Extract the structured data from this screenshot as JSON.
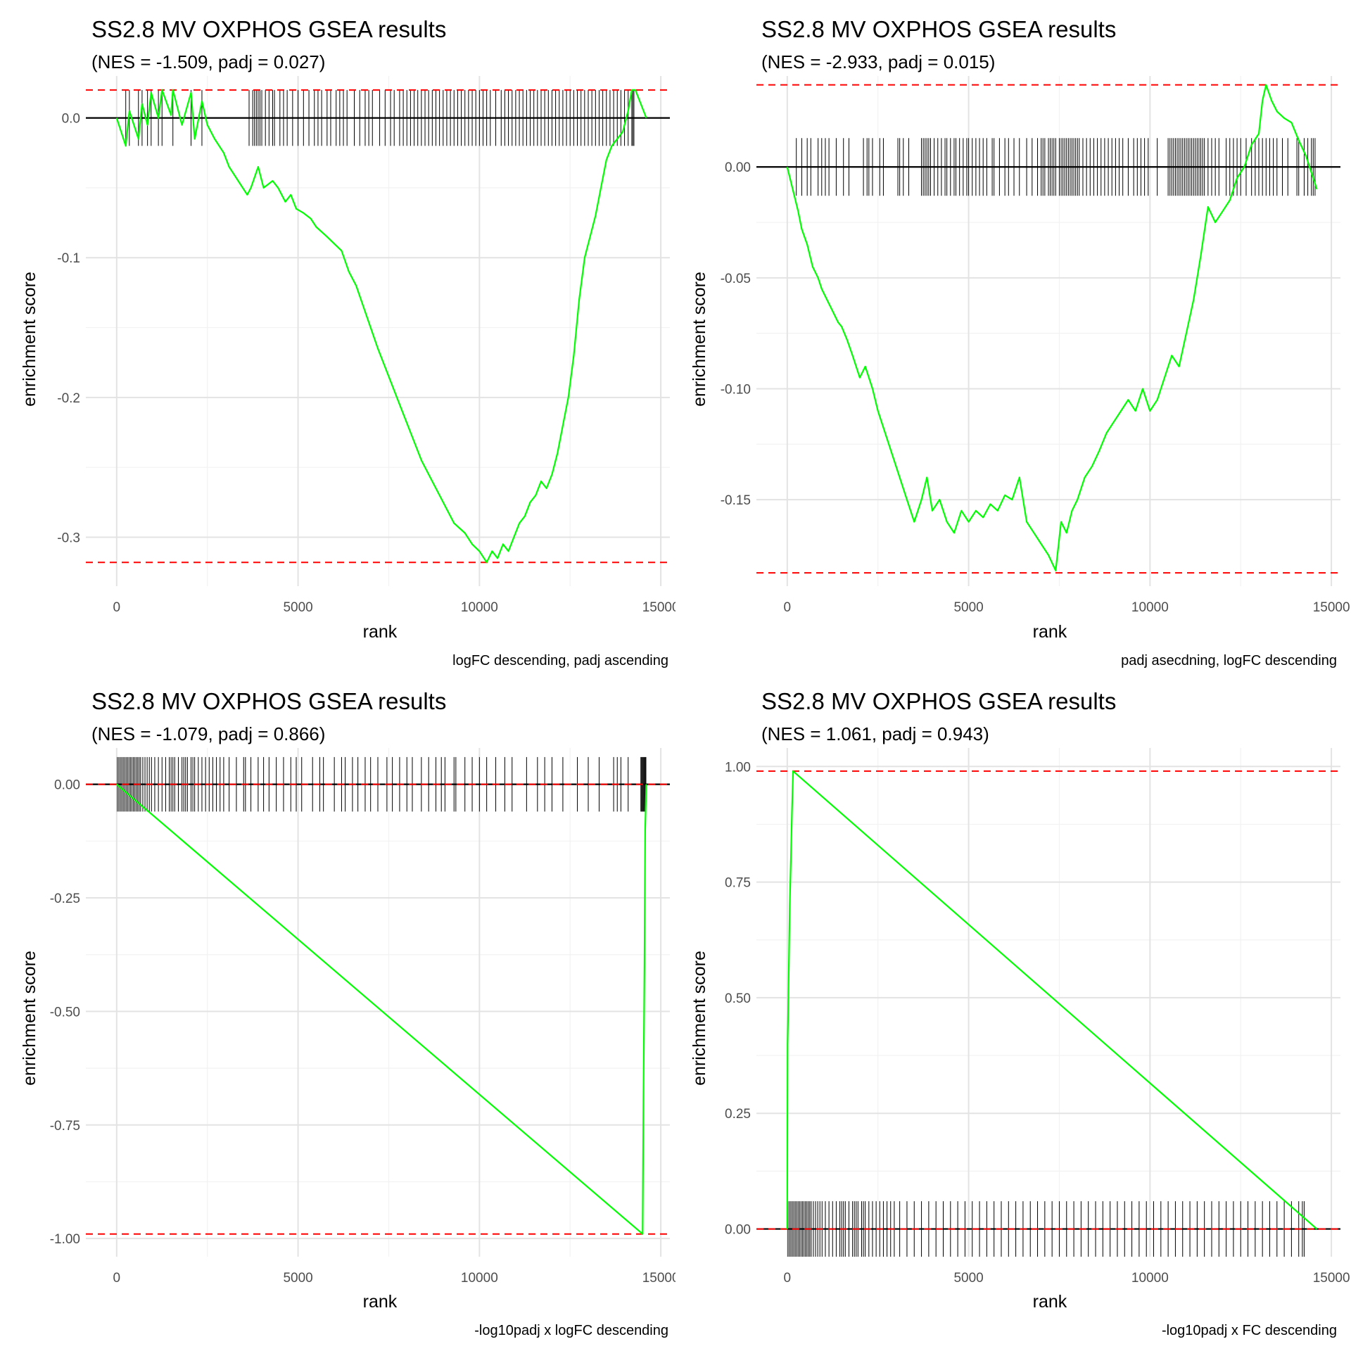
{
  "chart_data": [
    {
      "type": "line",
      "title": "SS2.8 MV OXPHOS GSEA results",
      "subtitle": "(NES = -1.509, padj = 0.027)",
      "caption": "logFC descending, padj ascending",
      "xlabel": "rank",
      "ylabel": "enrichment score",
      "xlim": [
        -850,
        15250
      ],
      "ylim": [
        -0.335,
        0.03
      ],
      "xticks": [
        0,
        5000,
        10000,
        15000
      ],
      "xtick_labels": [
        "0",
        "5000",
        "10000",
        "15000"
      ],
      "yticks": [
        0.0,
        -0.1,
        -0.2,
        -0.3
      ],
      "ytick_labels": [
        "0.0",
        "-0.1",
        "-0.2",
        "-0.3"
      ],
      "dashed_lines": [
        0.02,
        -0.318
      ],
      "tick_band": [
        -0.02,
        0.02
      ],
      "series": [
        {
          "name": "running enrichment score",
          "color": "#00ff00",
          "x": [
            0,
            250,
            350,
            600,
            700,
            850,
            950,
            1150,
            1250,
            1500,
            1550,
            1800,
            2050,
            2150,
            2350,
            2500,
            2700,
            2950,
            3100,
            3350,
            3600,
            3700,
            3900,
            4050,
            4300,
            4450,
            4650,
            4800,
            4950,
            5150,
            5350,
            5500,
            5800,
            6000,
            6200,
            6400,
            6600,
            6800,
            7000,
            7200,
            7500,
            7800,
            8100,
            8400,
            8700,
            9000,
            9300,
            9600,
            9800,
            10000,
            10200,
            10350,
            10500,
            10650,
            10800,
            10950,
            11100,
            11250,
            11400,
            11550,
            11700,
            11850,
            12000,
            12150,
            12300,
            12450,
            12600,
            12750,
            12900,
            13050,
            13200,
            13350,
            13500,
            13650,
            13800,
            13950,
            14100,
            14200,
            14300,
            14600
          ],
          "values": [
            0.0,
            -0.02,
            0.005,
            -0.015,
            0.01,
            -0.005,
            0.018,
            0.0,
            0.02,
            0.002,
            0.02,
            -0.005,
            0.018,
            -0.015,
            0.012,
            -0.005,
            -0.015,
            -0.025,
            -0.035,
            -0.045,
            -0.055,
            -0.05,
            -0.035,
            -0.05,
            -0.045,
            -0.05,
            -0.06,
            -0.055,
            -0.065,
            -0.068,
            -0.072,
            -0.078,
            -0.085,
            -0.09,
            -0.095,
            -0.11,
            -0.12,
            -0.135,
            -0.15,
            -0.165,
            -0.185,
            -0.205,
            -0.225,
            -0.245,
            -0.26,
            -0.275,
            -0.29,
            -0.297,
            -0.305,
            -0.31,
            -0.318,
            -0.31,
            -0.315,
            -0.305,
            -0.31,
            -0.3,
            -0.29,
            -0.285,
            -0.275,
            -0.27,
            -0.26,
            -0.265,
            -0.255,
            -0.24,
            -0.22,
            -0.2,
            -0.17,
            -0.13,
            -0.1,
            -0.085,
            -0.07,
            -0.05,
            -0.03,
            -0.02,
            -0.015,
            -0.01,
            0.005,
            0.02,
            0.02,
            0.0
          ]
        }
      ],
      "hits": [
        250,
        350,
        600,
        700,
        850,
        950,
        1150,
        1250,
        1550,
        2050,
        2350,
        3650,
        3750,
        3800,
        3850,
        3900,
        3950,
        4000,
        4100,
        4200,
        4300,
        4350,
        4500,
        4600,
        4700,
        4850,
        5000,
        5150,
        5300,
        5450,
        5550,
        5650,
        5800,
        5900,
        6050,
        6150,
        6250,
        6350,
        6550,
        6700,
        6850,
        6950,
        7050,
        7250,
        7400,
        7550,
        7650,
        7800,
        7900,
        8000,
        8100,
        8200,
        8300,
        8400,
        8500,
        8600,
        8700,
        8800,
        8900,
        9000,
        9100,
        9200,
        9300,
        9400,
        9500,
        9600,
        9700,
        9800,
        9900,
        10000,
        10100,
        10200,
        10300,
        10450,
        10600,
        10700,
        10800,
        10900,
        11000,
        11100,
        11200,
        11300,
        11400,
        11500,
        11600,
        11700,
        11800,
        11900,
        12000,
        12100,
        12200,
        12300,
        12400,
        12500,
        12600,
        12700,
        12800,
        12900,
        13000,
        13100,
        13200,
        13300,
        13400,
        13500,
        13600,
        13700,
        13800,
        13900,
        14000,
        14100,
        14200,
        14230,
        14260
      ]
    },
    {
      "type": "line",
      "title": "SS2.8 MV OXPHOS GSEA results",
      "subtitle": "(NES = -2.933, padj = 0.015)",
      "caption": "padj asecdning, logFC descending",
      "xlabel": "rank",
      "ylabel": "enrichment score",
      "xlim": [
        -850,
        15250
      ],
      "ylim": [
        -0.189,
        0.041
      ],
      "xticks": [
        0,
        5000,
        10000,
        15000
      ],
      "xtick_labels": [
        "0",
        "5000",
        "10000",
        "15000"
      ],
      "yticks": [
        0.0,
        -0.05,
        -0.1,
        -0.15
      ],
      "ytick_labels": [
        "0.00",
        "-0.05",
        "-0.10",
        "-0.15"
      ],
      "dashed_lines": [
        0.037,
        -0.183
      ],
      "tick_band": [
        -0.013,
        0.013
      ],
      "series": [
        {
          "name": "running enrichment score",
          "color": "#00ff00",
          "x": [
            0,
            300,
            400,
            550,
            700,
            850,
            950,
            1100,
            1250,
            1400,
            1500,
            1650,
            1800,
            2000,
            2150,
            2350,
            2500,
            2700,
            2900,
            3100,
            3300,
            3500,
            3700,
            3850,
            4000,
            4200,
            4400,
            4600,
            4800,
            5000,
            5200,
            5400,
            5600,
            5800,
            6000,
            6200,
            6400,
            6600,
            6800,
            7000,
            7200,
            7400,
            7550,
            7700,
            7850,
            8000,
            8200,
            8400,
            8600,
            8800,
            9000,
            9200,
            9400,
            9600,
            9800,
            10000,
            10200,
            10400,
            10600,
            10800,
            11000,
            11200,
            11400,
            11600,
            11800,
            12000,
            12200,
            12400,
            12600,
            12800,
            13000,
            13100,
            13200,
            13350,
            13500,
            13700,
            13900,
            14100,
            14300,
            14500,
            14600
          ],
          "values": [
            0.0,
            -0.02,
            -0.028,
            -0.035,
            -0.045,
            -0.05,
            -0.055,
            -0.06,
            -0.065,
            -0.07,
            -0.072,
            -0.078,
            -0.085,
            -0.095,
            -0.09,
            -0.1,
            -0.11,
            -0.12,
            -0.13,
            -0.14,
            -0.15,
            -0.16,
            -0.15,
            -0.14,
            -0.155,
            -0.15,
            -0.16,
            -0.165,
            -0.155,
            -0.16,
            -0.155,
            -0.158,
            -0.152,
            -0.155,
            -0.148,
            -0.15,
            -0.14,
            -0.16,
            -0.165,
            -0.17,
            -0.175,
            -0.182,
            -0.16,
            -0.165,
            -0.155,
            -0.15,
            -0.14,
            -0.135,
            -0.128,
            -0.12,
            -0.115,
            -0.11,
            -0.105,
            -0.11,
            -0.1,
            -0.11,
            -0.105,
            -0.095,
            -0.085,
            -0.09,
            -0.075,
            -0.06,
            -0.04,
            -0.018,
            -0.025,
            -0.02,
            -0.015,
            -0.005,
            0.0,
            0.01,
            0.015,
            0.03,
            0.037,
            0.03,
            0.025,
            0.022,
            0.02,
            0.012,
            0.005,
            -0.005,
            -0.01
          ]
        }
      ],
      "hits": [
        250,
        400,
        550,
        650,
        850,
        950,
        1050,
        1150,
        1350,
        1550,
        1700,
        2100,
        2200,
        2250,
        2350,
        2550,
        2650,
        3050,
        3100,
        3200,
        3350,
        3700,
        3750,
        3800,
        3850,
        3900,
        3950,
        4050,
        4150,
        4250,
        4350,
        4400,
        4500,
        4600,
        4650,
        4750,
        4850,
        4950,
        5000,
        5100,
        5200,
        5300,
        5400,
        5500,
        5650,
        5700,
        5850,
        6000,
        6100,
        6250,
        6400,
        6600,
        6750,
        6900,
        7000,
        7050,
        7100,
        7200,
        7250,
        7300,
        7350,
        7400,
        7500,
        7550,
        7600,
        7650,
        7700,
        7750,
        7800,
        7850,
        7900,
        7950,
        8000,
        8050,
        8150,
        8250,
        8350,
        8450,
        8550,
        8650,
        8750,
        8850,
        8950,
        9050,
        9150,
        9250,
        9400,
        9550,
        9650,
        9750,
        9850,
        9950,
        10200,
        10500,
        10550,
        10600,
        10650,
        10700,
        10750,
        10800,
        10850,
        10900,
        10950,
        11000,
        11050,
        11100,
        11150,
        11200,
        11250,
        11300,
        11350,
        11400,
        11450,
        11500,
        11600,
        11700,
        11800,
        11900,
        12100,
        12200,
        12300,
        12400,
        12500,
        12650,
        12800,
        12900,
        13000,
        13100,
        13200,
        13300,
        13400,
        13500,
        13650,
        13800,
        14050,
        14100,
        14250,
        14350,
        14450,
        14500,
        14550
      ]
    },
    {
      "type": "line",
      "title": "SS2.8 MV OXPHOS GSEA results",
      "subtitle": "(NES = -1.079, padj = 0.866)",
      "caption": "-log10padj x logFC descending",
      "xlabel": "rank",
      "ylabel": "enrichment score",
      "xlim": [
        -850,
        15250
      ],
      "ylim": [
        -1.04,
        0.08
      ],
      "xticks": [
        0,
        5000,
        10000,
        15000
      ],
      "xtick_labels": [
        "0",
        "5000",
        "10000",
        "15000"
      ],
      "yticks": [
        0.0,
        -0.25,
        -0.5,
        -0.75,
        -1.0
      ],
      "ytick_labels": [
        "0.00",
        "-0.25",
        "-0.50",
        "-0.75",
        "-1.00"
      ],
      "dashed_lines": [
        0.0,
        -0.99
      ],
      "tick_band": [
        -0.06,
        0.06
      ],
      "series": [
        {
          "name": "running enrichment score",
          "color": "#00ff00",
          "x": [
            0,
            14500,
            14520,
            14550,
            14570,
            14600
          ],
          "values": [
            0.0,
            -0.99,
            -0.7,
            -0.4,
            -0.1,
            0.0
          ]
        }
      ],
      "hits": [
        20,
        60,
        100,
        140,
        180,
        220,
        260,
        300,
        340,
        380,
        420,
        460,
        500,
        540,
        580,
        620,
        660,
        720,
        780,
        840,
        900,
        960,
        1050,
        1150,
        1250,
        1350,
        1450,
        1500,
        1550,
        1600,
        1700,
        1800,
        1850,
        1900,
        1950,
        2050,
        2100,
        2150,
        2250,
        2350,
        2450,
        2550,
        2650,
        2750,
        2850,
        2950,
        3100,
        3300,
        3500,
        3550,
        3700,
        3900,
        4050,
        4200,
        4400,
        4600,
        4800,
        4950,
        5100,
        5400,
        5600,
        5700,
        6000,
        6200,
        6300,
        6500,
        6650,
        6850,
        7000,
        7200,
        7450,
        7600,
        7800,
        8000,
        8150,
        8400,
        8600,
        8800,
        8950,
        9050,
        9300,
        9350,
        9600,
        9800,
        10000,
        10200,
        10450,
        10700,
        10900,
        11300,
        11600,
        11800,
        12000,
        12300,
        12700,
        13000,
        13300,
        13700,
        13800,
        13900,
        14100,
        14450,
        14470,
        14490,
        14510,
        14530,
        14550,
        14570,
        14590
      ]
    },
    {
      "type": "line",
      "title": "SS2.8 MV OXPHOS GSEA results",
      "subtitle": "(NES = 1.061, padj = 0.943)",
      "caption": "-log10padj x FC descending",
      "xlabel": "rank",
      "ylabel": "enrichment score",
      "xlim": [
        -850,
        15250
      ],
      "ylim": [
        -0.06,
        1.04
      ],
      "xticks": [
        0,
        5000,
        10000,
        15000
      ],
      "xtick_labels": [
        "0",
        "5000",
        "10000",
        "15000"
      ],
      "yticks": [
        0.0,
        0.25,
        0.5,
        0.75,
        1.0
      ],
      "ytick_labels": [
        "0.00",
        "0.25",
        "0.50",
        "0.75",
        "1.00"
      ],
      "dashed_lines": [
        0.99,
        0.0
      ],
      "tick_band": [
        -0.06,
        0.06
      ],
      "series": [
        {
          "name": "running enrichment score",
          "color": "#00ff00",
          "x": [
            0,
            10,
            20,
            50,
            70,
            100,
            130,
            160,
            14600
          ],
          "values": [
            0.0,
            0.4,
            0.45,
            0.6,
            0.7,
            0.8,
            0.9,
            0.99,
            0.0
          ]
        }
      ],
      "hits": [
        20,
        60,
        100,
        140,
        180,
        220,
        260,
        300,
        340,
        380,
        420,
        460,
        500,
        540,
        580,
        620,
        660,
        720,
        780,
        840,
        900,
        960,
        1050,
        1150,
        1250,
        1350,
        1450,
        1500,
        1550,
        1600,
        1700,
        1800,
        1850,
        1900,
        1950,
        2050,
        2100,
        2150,
        2250,
        2350,
        2450,
        2550,
        2650,
        2750,
        2850,
        2950,
        3100,
        3300,
        3500,
        3700,
        3900,
        4100,
        4300,
        4500,
        4700,
        4900,
        5100,
        5300,
        5500,
        5700,
        5900,
        6100,
        6300,
        6500,
        6700,
        6900,
        7100,
        7300,
        7500,
        7700,
        7900,
        8100,
        8300,
        8500,
        8700,
        8900,
        9100,
        9300,
        9500,
        9700,
        9900,
        10100,
        10300,
        10500,
        10700,
        10900,
        11100,
        11300,
        11500,
        11700,
        11900,
        12100,
        12300,
        12500,
        12700,
        12900,
        13100,
        13300,
        13500,
        13700,
        13900,
        14100,
        14200,
        14250
      ]
    }
  ]
}
